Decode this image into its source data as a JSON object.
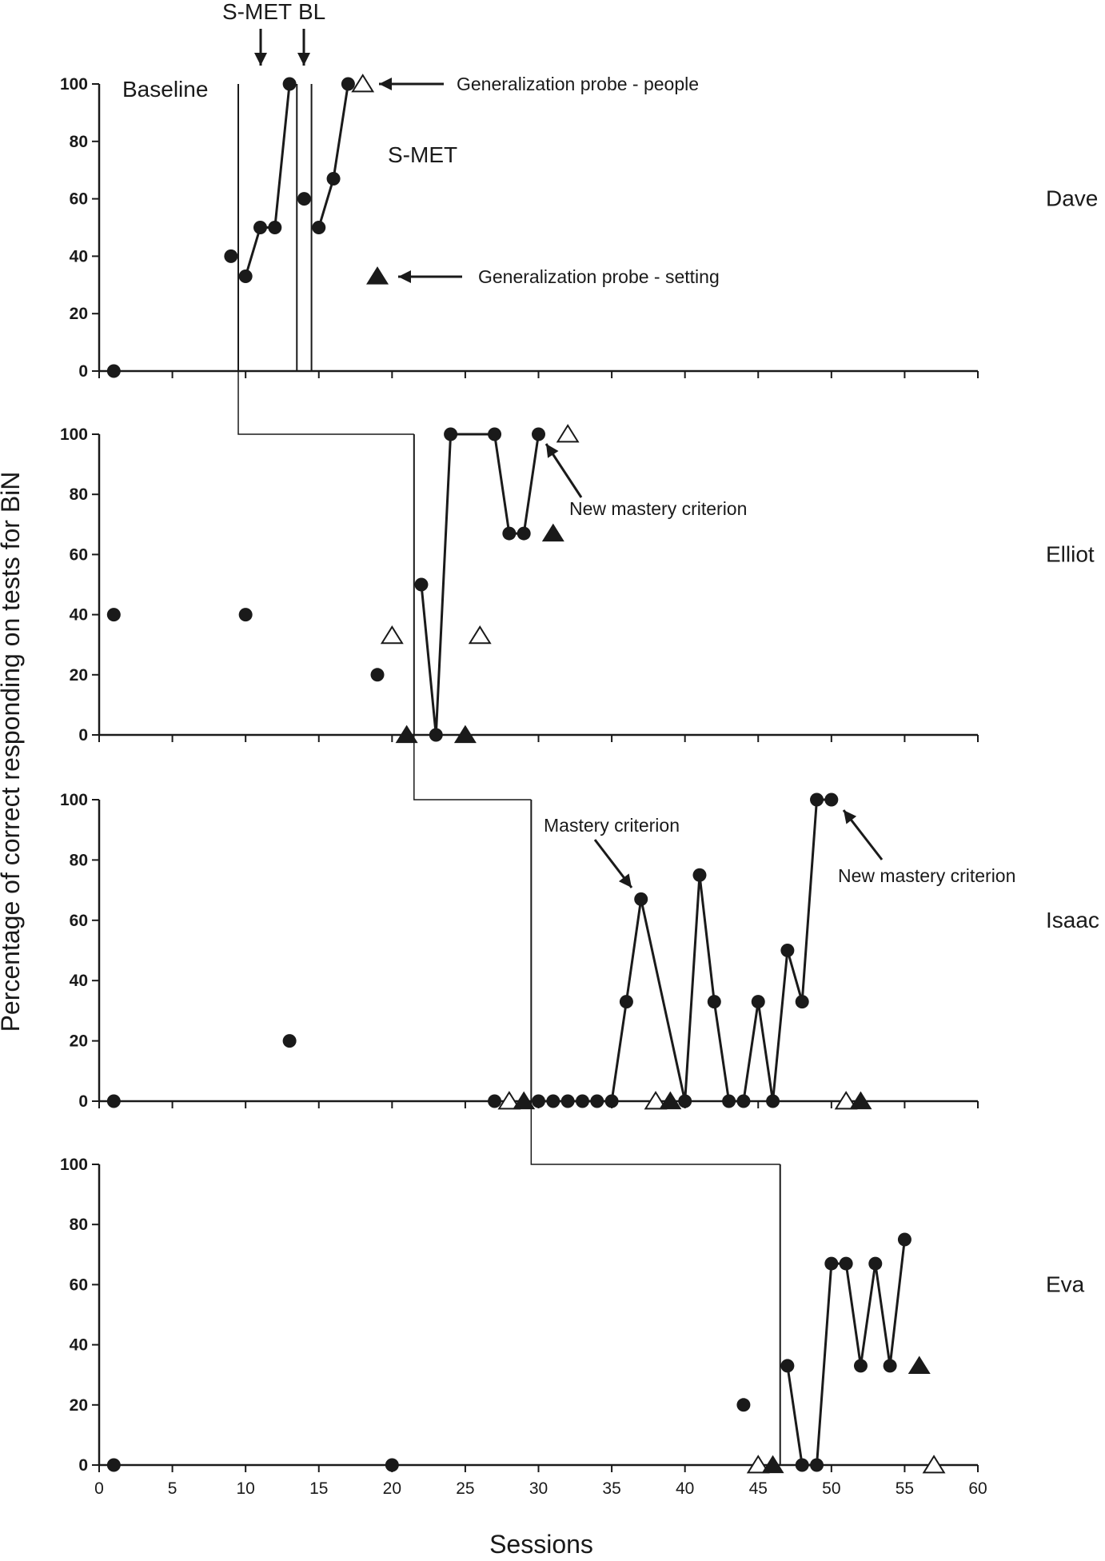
{
  "chart_data": {
    "type": "scatter",
    "title": "",
    "xlabel": "Sessions",
    "ylabel": "Percentage of correct responding on tests for BiN",
    "xlim": [
      0,
      60
    ],
    "ylim": [
      0,
      100
    ],
    "x_ticks": [
      0,
      5,
      10,
      15,
      20,
      25,
      30,
      35,
      40,
      45,
      50,
      55,
      60
    ],
    "y_ticks": [
      0,
      20,
      40,
      60,
      80,
      100
    ],
    "grid": false,
    "legend": "annotations on top panel",
    "panels": [
      {
        "name": "Dave",
        "phase_lines": [
          9.5,
          13.5,
          14.5
        ],
        "tests": [
          [
            1,
            0
          ],
          [
            9,
            40
          ]
        ],
        "tests_connected": [
          [
            [
              10,
              33
            ],
            [
              11,
              50
            ],
            [
              12,
              50
            ],
            [
              13,
              100
            ]
          ],
          [
            [
              14,
              60
            ]
          ],
          [
            [
              15,
              50
            ],
            [
              16,
              67
            ],
            [
              17,
              100
            ]
          ]
        ],
        "probe_people": [
          [
            18,
            100
          ]
        ],
        "probe_setting": [
          [
            19,
            33
          ]
        ]
      },
      {
        "name": "Elliot",
        "phase_lines": [
          21.5
        ],
        "tests": [
          [
            1,
            40
          ],
          [
            10,
            40
          ],
          [
            19,
            20
          ]
        ],
        "tests_connected": [
          [
            [
              22,
              50
            ],
            [
              23,
              0
            ],
            [
              24,
              100
            ],
            [
              27,
              100
            ],
            [
              28,
              67
            ],
            [
              29,
              67
            ],
            [
              30,
              100
            ]
          ]
        ],
        "probe_people": [
          [
            20,
            33
          ],
          [
            26,
            33
          ],
          [
            32,
            100
          ]
        ],
        "probe_setting": [
          [
            21,
            0
          ],
          [
            25,
            0
          ],
          [
            31,
            67
          ]
        ]
      },
      {
        "name": "Isaac",
        "phase_lines": [
          29.5
        ],
        "tests": [
          [
            1,
            0
          ],
          [
            13,
            20
          ],
          [
            27,
            0
          ]
        ],
        "tests_connected": [
          [
            [
              30,
              0
            ],
            [
              31,
              0
            ],
            [
              32,
              0
            ],
            [
              33,
              0
            ],
            [
              34,
              0
            ],
            [
              35,
              0
            ],
            [
              36,
              33
            ],
            [
              37,
              67
            ],
            [
              40,
              0
            ],
            [
              41,
              75
            ],
            [
              42,
              33
            ],
            [
              43,
              0
            ],
            [
              44,
              0
            ],
            [
              45,
              33
            ],
            [
              46,
              0
            ],
            [
              47,
              50
            ],
            [
              48,
              33
            ],
            [
              49,
              100
            ],
            [
              50,
              100
            ]
          ]
        ],
        "probe_people": [
          [
            28,
            0
          ],
          [
            38,
            0
          ],
          [
            51,
            0
          ]
        ],
        "probe_setting": [
          [
            29,
            0
          ],
          [
            39,
            0
          ],
          [
            52,
            0
          ]
        ]
      },
      {
        "name": "Eva",
        "phase_lines": [
          46.5
        ],
        "tests": [
          [
            1,
            0
          ],
          [
            20,
            0
          ],
          [
            44,
            20
          ]
        ],
        "tests_connected": [
          [
            [
              47,
              33
            ],
            [
              48,
              0
            ],
            [
              49,
              0
            ],
            [
              50,
              67
            ],
            [
              51,
              67
            ],
            [
              52,
              33
            ],
            [
              53,
              67
            ],
            [
              54,
              33
            ],
            [
              55,
              75
            ]
          ]
        ],
        "probe_people": [
          [
            45,
            0
          ],
          [
            57,
            0
          ]
        ],
        "probe_setting": [
          [
            46,
            0
          ],
          [
            56,
            33
          ]
        ]
      }
    ],
    "phase_labels": {
      "baseline": "Baseline",
      "treatment": "S-MET",
      "top_smet": "S-MET",
      "top_bl": "BL"
    },
    "annotations": {
      "probe_people": "Generalization probe - people",
      "probe_setting": "Generalization probe - setting",
      "elliot_new_mastery": "New mastery criterion",
      "isaac_mastery": "Mastery criterion",
      "isaac_new_mastery": "New mastery criterion"
    }
  }
}
